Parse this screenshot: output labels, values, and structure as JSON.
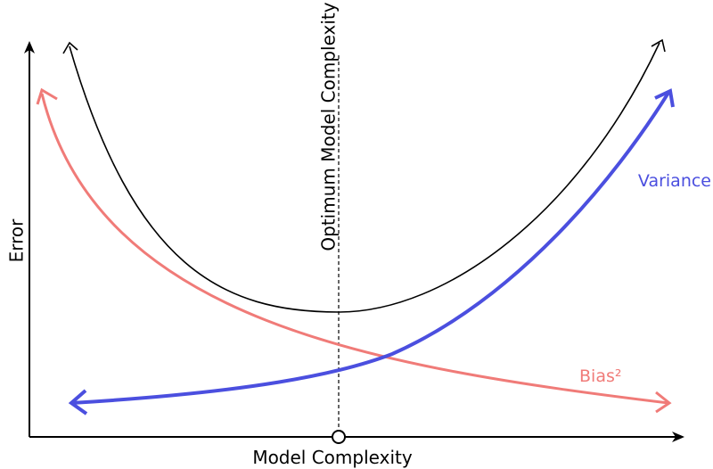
{
  "diagram": {
    "y_axis_label": "Error",
    "x_axis_label": "Model Complexity",
    "optimum_label": "Optimum Model Complexity",
    "variance_label": "Variance",
    "bias_label": "Bias²"
  },
  "colors": {
    "total_error": "#000000",
    "variance": "#4b4fdf",
    "bias": "#f07b78",
    "axis": "#000000"
  }
}
